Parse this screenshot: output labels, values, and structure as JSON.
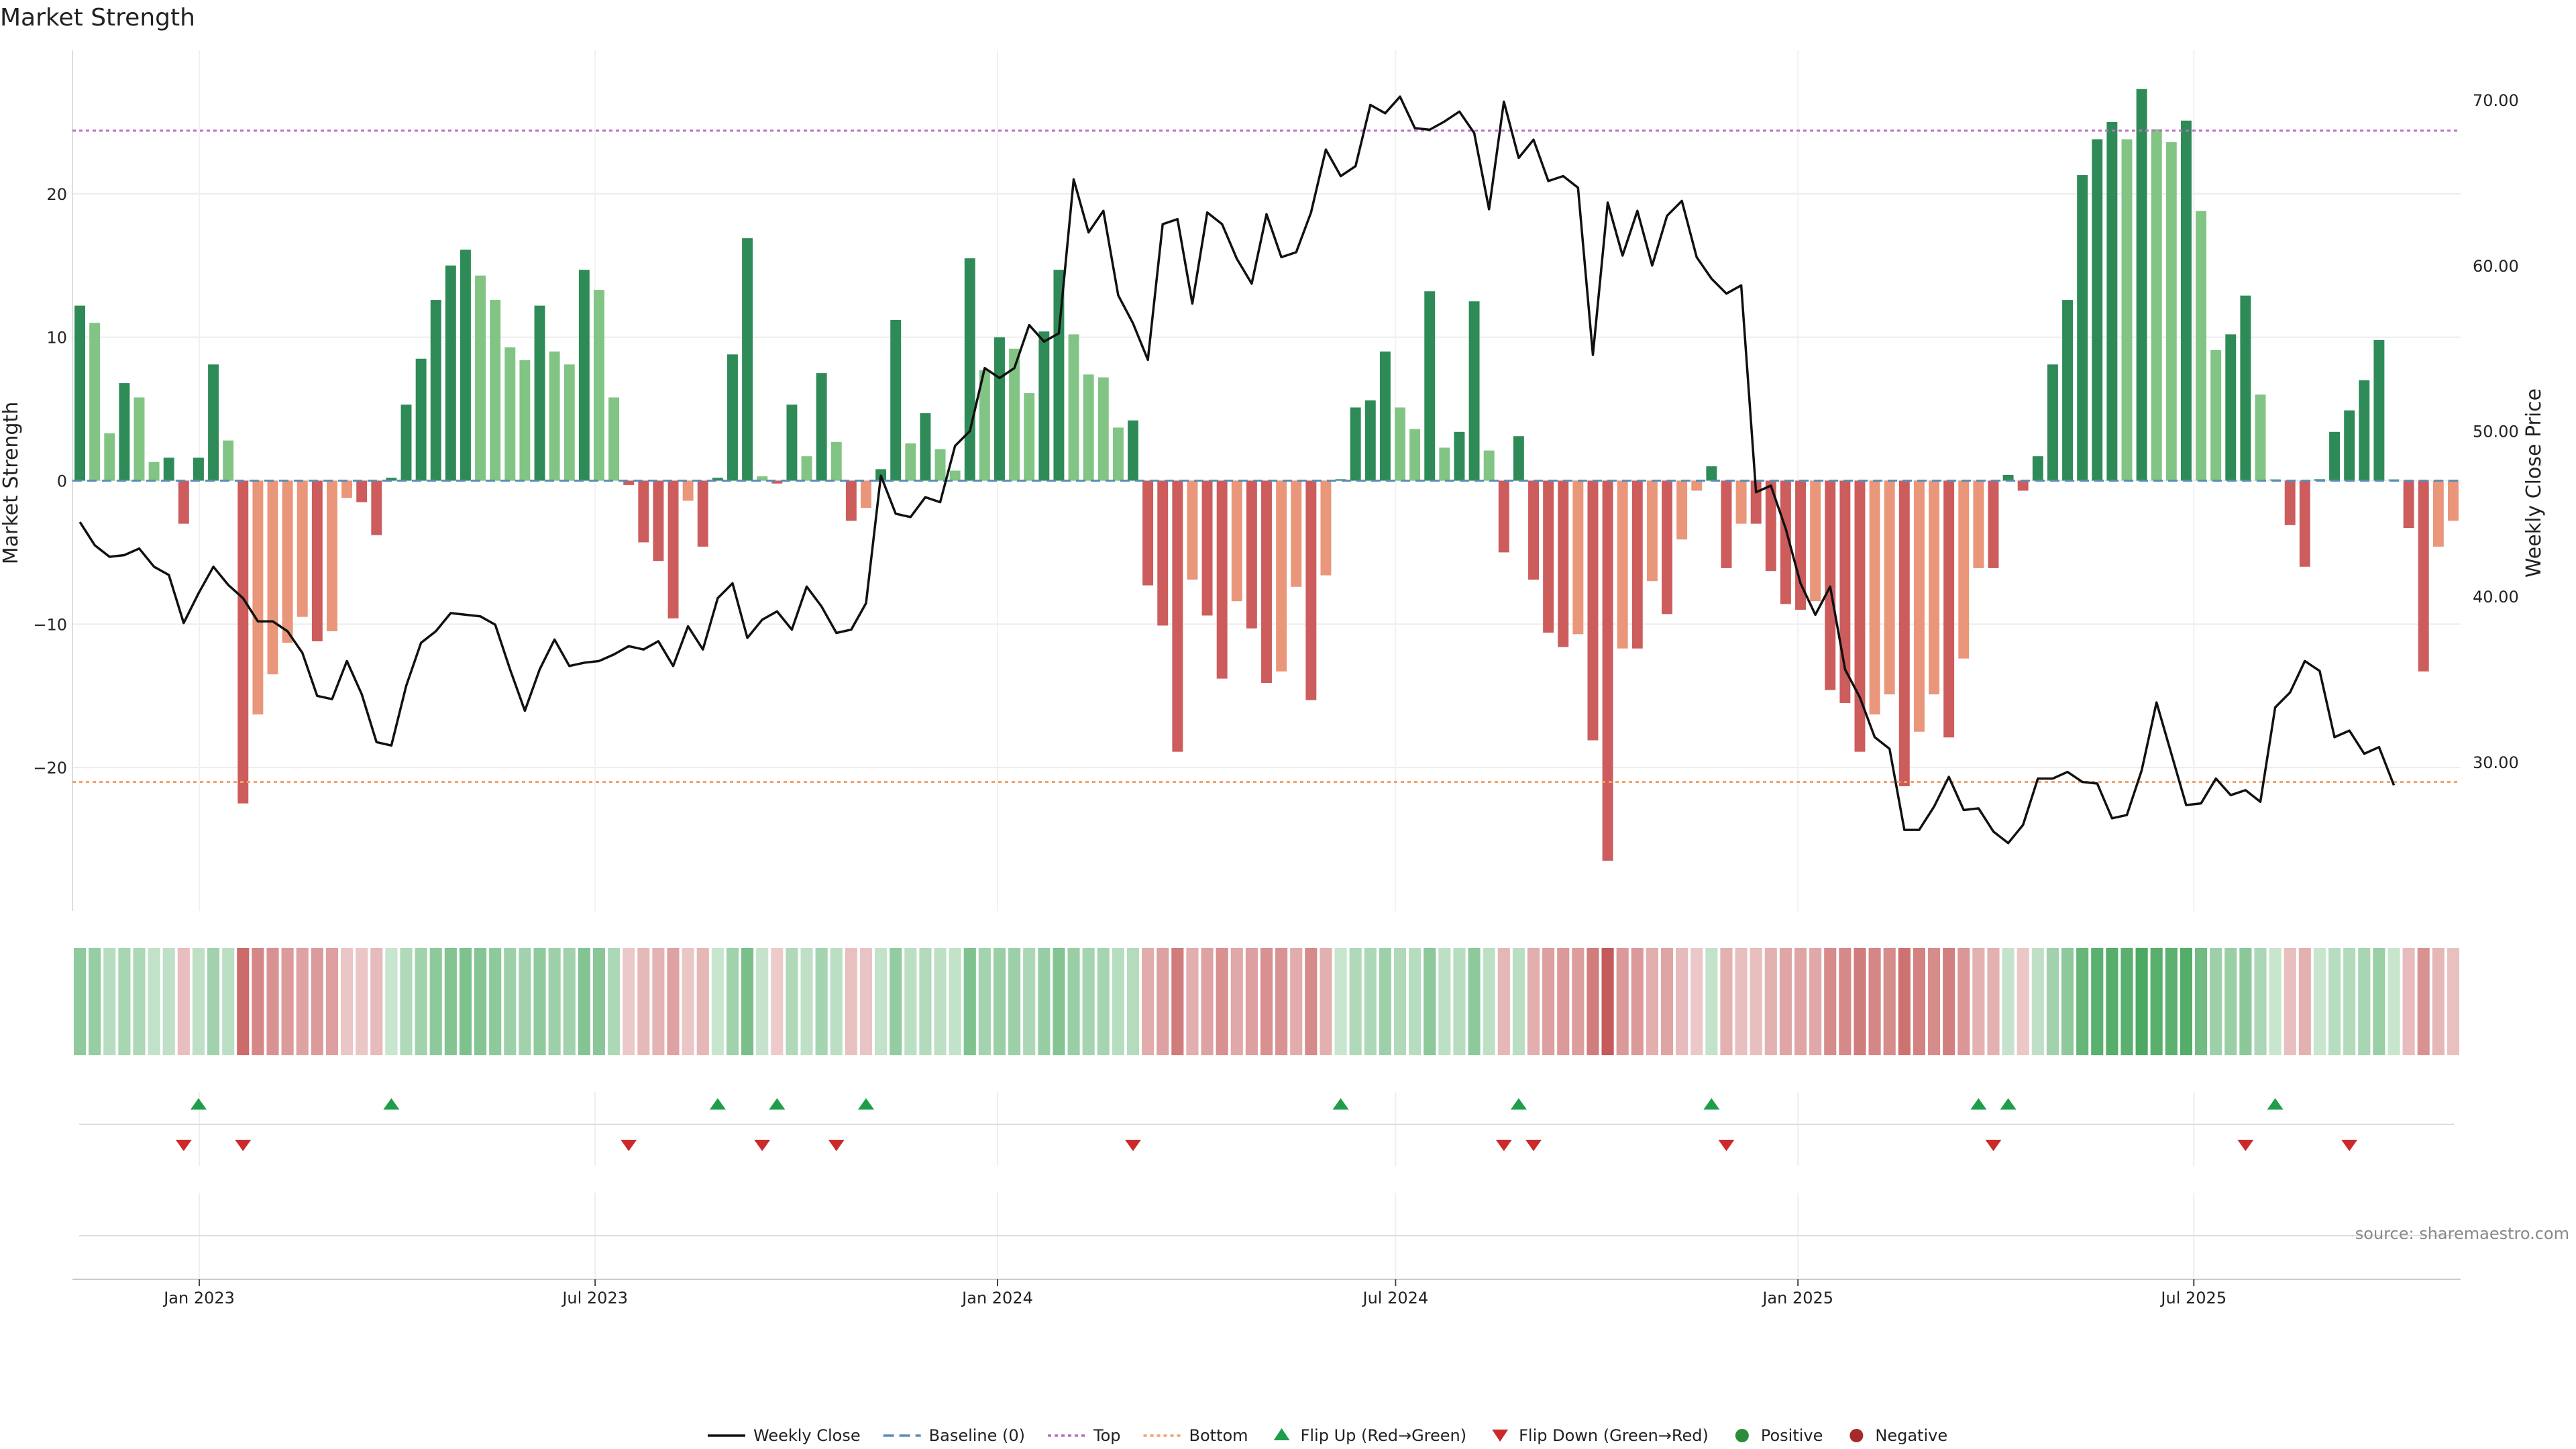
{
  "chart_data": {
    "type": "bar",
    "title": "Market Strength",
    "ylabel": "Market Strength",
    "y2label": "Weekly Close Price",
    "ylim": [
      -30,
      30
    ],
    "y2lim": [
      21,
      73
    ],
    "yticks": [
      -20,
      -10,
      0,
      10,
      20
    ],
    "y2ticks": [
      "30.00",
      "40.00",
      "50.00",
      "60.00",
      "70.00"
    ],
    "top_line": 24.4,
    "bottom_line": -21,
    "x_start": "2022-11-04",
    "x_end": "2025-10-31",
    "xticks": [
      {
        "date": "2023-01-01",
        "label": "Jan 2023"
      },
      {
        "date": "2023-07-01",
        "label": "Jul 2023"
      },
      {
        "date": "2024-01-01",
        "label": "Jan 2024"
      },
      {
        "date": "2024-07-01",
        "label": "Jul 2024"
      },
      {
        "date": "2025-01-01",
        "label": "Jan 2025"
      },
      {
        "date": "2025-07-01",
        "label": "Jul 2025"
      }
    ],
    "strength": [
      12.2,
      11,
      3.3,
      6.8,
      5.8,
      1.3,
      1.6,
      -3,
      1.6,
      8.1,
      2.8,
      -22.5,
      -16.3,
      -13.5,
      -11.3,
      -9.5,
      -11.2,
      -10.5,
      -1.2,
      -1.5,
      -3.8,
      0.2,
      5.3,
      8.5,
      12.6,
      15,
      16.1,
      14.3,
      12.6,
      9.3,
      8.4,
      12.2,
      9,
      8.1,
      14.7,
      13.3,
      5.8,
      -0.3,
      -4.3,
      -5.6,
      -9.6,
      -1.4,
      -4.6,
      0.2,
      8.8,
      16.9,
      0.3,
      -0.2,
      5.3,
      1.7,
      7.5,
      2.7,
      -2.8,
      -1.9,
      0.8,
      11.2,
      2.6,
      4.7,
      2.2,
      0.7,
      15.5,
      7.7,
      10,
      9.2,
      6.1,
      10.4,
      14.7,
      10.2,
      7.4,
      7.2,
      3.7,
      4.2,
      -7.3,
      -10.1,
      -18.9,
      -6.9,
      -9.4,
      -13.8,
      -8.4,
      -10.3,
      -14.1,
      -13.3,
      -7.4,
      -15.3,
      -6.6,
      0.1,
      5.1,
      5.6,
      9,
      5.1,
      3.6,
      13.2,
      2.3,
      3.4,
      12.5,
      2.1,
      -5,
      3.1,
      -6.9,
      -10.6,
      -11.6,
      -10.7,
      -18.1,
      -26.5,
      -11.7,
      -11.7,
      -7,
      -9.3,
      -4.1,
      -0.7,
      1,
      -6.1,
      -3,
      -3,
      -6.3,
      -8.6,
      -9,
      -8.4,
      -14.6,
      -15.5,
      -18.9,
      -16.3,
      -14.9,
      -21.3,
      -17.5,
      -14.9,
      -17.9,
      -12.4,
      -6.1,
      -6.1,
      0.4,
      -0.7,
      1.7,
      8.1,
      12.6,
      21.3,
      23.8,
      25,
      23.8,
      27.3,
      24.5,
      23.6,
      25.1,
      18.8,
      9.1,
      10.2,
      12.9,
      6,
      0.1,
      -3.1,
      -6,
      0.1,
      3.4,
      4.9,
      7,
      9.8,
      0.1,
      -3.3,
      -13.3,
      -4.6,
      -2.8
    ],
    "close": [
      44.5,
      43.1,
      42.4,
      42.5,
      42.9,
      41.8,
      41.3,
      38.4,
      40.2,
      41.8,
      40.7,
      39.9,
      38.5,
      38.5,
      37.9,
      36.6,
      34,
      33.8,
      36.1,
      34.1,
      31.2,
      31,
      34.6,
      37.2,
      37.9,
      39,
      38.9,
      38.8,
      38.3,
      35.6,
      33.1,
      35.6,
      37.4,
      35.8,
      36,
      36.1,
      36.5,
      37,
      36.8,
      37.3,
      35.8,
      38.2,
      36.8,
      39.9,
      40.8,
      37.5,
      38.6,
      39.1,
      38,
      40.6,
      39.4,
      37.8,
      38,
      39.6,
      47.3,
      45,
      44.8,
      46,
      45.7,
      49.1,
      50,
      53.8,
      53.2,
      53.8,
      56.4,
      55.4,
      55.9,
      65.2,
      62,
      63.3,
      58.2,
      56.5,
      54.3,
      62.5,
      62.8,
      57.7,
      63.2,
      62.5,
      60.4,
      58.9,
      63.1,
      60.5,
      60.8,
      63.2,
      67,
      65.4,
      66,
      69.7,
      69.2,
      70.2,
      68.3,
      68.2,
      68.7,
      69.3,
      68,
      63.4,
      69.9,
      66.5,
      67.6,
      65.1,
      65.4,
      64.7,
      54.6,
      63.8,
      60.6,
      63.3,
      60,
      63,
      63.9,
      60.5,
      59.2,
      58.3,
      58.8,
      46.3,
      46.7,
      44.1,
      40.8,
      38.9,
      40.6,
      35.6,
      33.9,
      31.5,
      30.8,
      25.9,
      25.9,
      27.3,
      29.1,
      27.1,
      27.2,
      25.8,
      25.1,
      26.2,
      29,
      29,
      29.4,
      28.8,
      28.7,
      26.6,
      26.8,
      29.5,
      33.6,
      30.5,
      27.4,
      27.5,
      29,
      28,
      28.3,
      27.6,
      33.3,
      34.2,
      36.1,
      35.5,
      31.5,
      31.9,
      30.5,
      30.9,
      28.6
    ],
    "flip_up_idx": [
      8,
      21,
      43,
      47,
      53,
      85,
      97,
      110,
      128,
      130,
      148
    ],
    "flip_down_idx": [
      7,
      11,
      37,
      46,
      51,
      71,
      96,
      98,
      111,
      129,
      146,
      153
    ],
    "series": [
      {
        "name": "Weekly Close",
        "color": "#111111"
      },
      {
        "name": "Baseline (0)",
        "color": "#5b8db8"
      },
      {
        "name": "Top",
        "color": "#b86fc4"
      },
      {
        "name": "Bottom",
        "color": "#f0a36b"
      },
      {
        "name": "Flip Up (Red→Green)",
        "color": "#1e9e4a"
      },
      {
        "name": "Flip Down (Green→Red)",
        "color": "#cc2a2a"
      },
      {
        "name": "Positive",
        "color": "#2e8b3a"
      },
      {
        "name": "Negative",
        "color": "#a52a2a"
      }
    ],
    "legend_position": "bottom-center",
    "colors": {
      "pos_strong": "#2e8b57",
      "pos_weak": "#82c484",
      "neg_strong": "#cd5c5c",
      "neg_weak": "#e9967a"
    }
  },
  "source_text": "source: sharemaestro.com"
}
